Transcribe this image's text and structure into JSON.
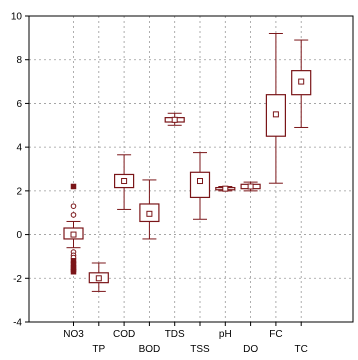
{
  "chart_data": {
    "type": "boxplot",
    "title": "",
    "xlabel": "",
    "ylabel": "",
    "ylim": [
      -4,
      10
    ],
    "yticks": [
      -4,
      -2,
      0,
      2,
      4,
      6,
      8,
      10
    ],
    "grid": true,
    "color": "#7a1518",
    "categories": [
      {
        "label": "NO3",
        "row": "top"
      },
      {
        "label": "TP",
        "row": "bottom"
      },
      {
        "label": "COD",
        "row": "top"
      },
      {
        "label": "BOD",
        "row": "bottom"
      },
      {
        "label": "TDS",
        "row": "top"
      },
      {
        "label": "TSS",
        "row": "bottom"
      },
      {
        "label": "pH",
        "row": "top"
      },
      {
        "label": "DO",
        "row": "bottom"
      },
      {
        "label": "FC",
        "row": "top"
      },
      {
        "label": "TC",
        "row": "bottom"
      }
    ],
    "boxes": [
      {
        "label": "NO3",
        "center": 0.0,
        "q1": -0.2,
        "q3": 0.3,
        "whisker_low": -0.6,
        "whisker_high": 0.6,
        "outliers": [
          0.9,
          1.3,
          -0.8,
          -0.95,
          -1.05
        ],
        "extremes": [
          2.2,
          -1.2,
          -1.35,
          -1.5,
          -1.6,
          -1.7
        ]
      },
      {
        "label": "TP",
        "center": -2.0,
        "q1": -2.2,
        "q3": -1.75,
        "whisker_low": -2.6,
        "whisker_high": -1.3,
        "outliers": [],
        "extremes": []
      },
      {
        "label": "COD",
        "center": 2.45,
        "q1": 2.15,
        "q3": 2.75,
        "whisker_low": 1.15,
        "whisker_high": 3.65,
        "outliers": [],
        "extremes": []
      },
      {
        "label": "BOD",
        "center": 0.95,
        "q1": 0.6,
        "q3": 1.4,
        "whisker_low": -0.2,
        "whisker_high": 2.5,
        "outliers": [],
        "extremes": []
      },
      {
        "label": "TDS",
        "center": 5.25,
        "q1": 5.15,
        "q3": 5.35,
        "whisker_low": 5.0,
        "whisker_high": 5.55,
        "outliers": [],
        "extremes": []
      },
      {
        "label": "TSS",
        "center": 2.45,
        "q1": 1.7,
        "q3": 2.85,
        "whisker_low": 0.7,
        "whisker_high": 3.75,
        "outliers": [],
        "extremes": []
      },
      {
        "label": "pH",
        "center": 2.1,
        "q1": 2.05,
        "q3": 2.15,
        "whisker_low": 2.0,
        "whisker_high": 2.2,
        "outliers": [],
        "extremes": []
      },
      {
        "label": "DO",
        "center": 2.2,
        "q1": 2.1,
        "q3": 2.3,
        "whisker_low": 2.0,
        "whisker_high": 2.4,
        "outliers": [],
        "extremes": []
      },
      {
        "label": "FC",
        "center": 5.5,
        "q1": 4.5,
        "q3": 6.4,
        "whisker_low": 2.35,
        "whisker_high": 9.2,
        "outliers": [],
        "extremes": []
      },
      {
        "label": "TC",
        "center": 7.0,
        "q1": 6.4,
        "q3": 7.5,
        "whisker_low": 4.9,
        "whisker_high": 8.9,
        "outliers": [],
        "extremes": []
      }
    ]
  }
}
